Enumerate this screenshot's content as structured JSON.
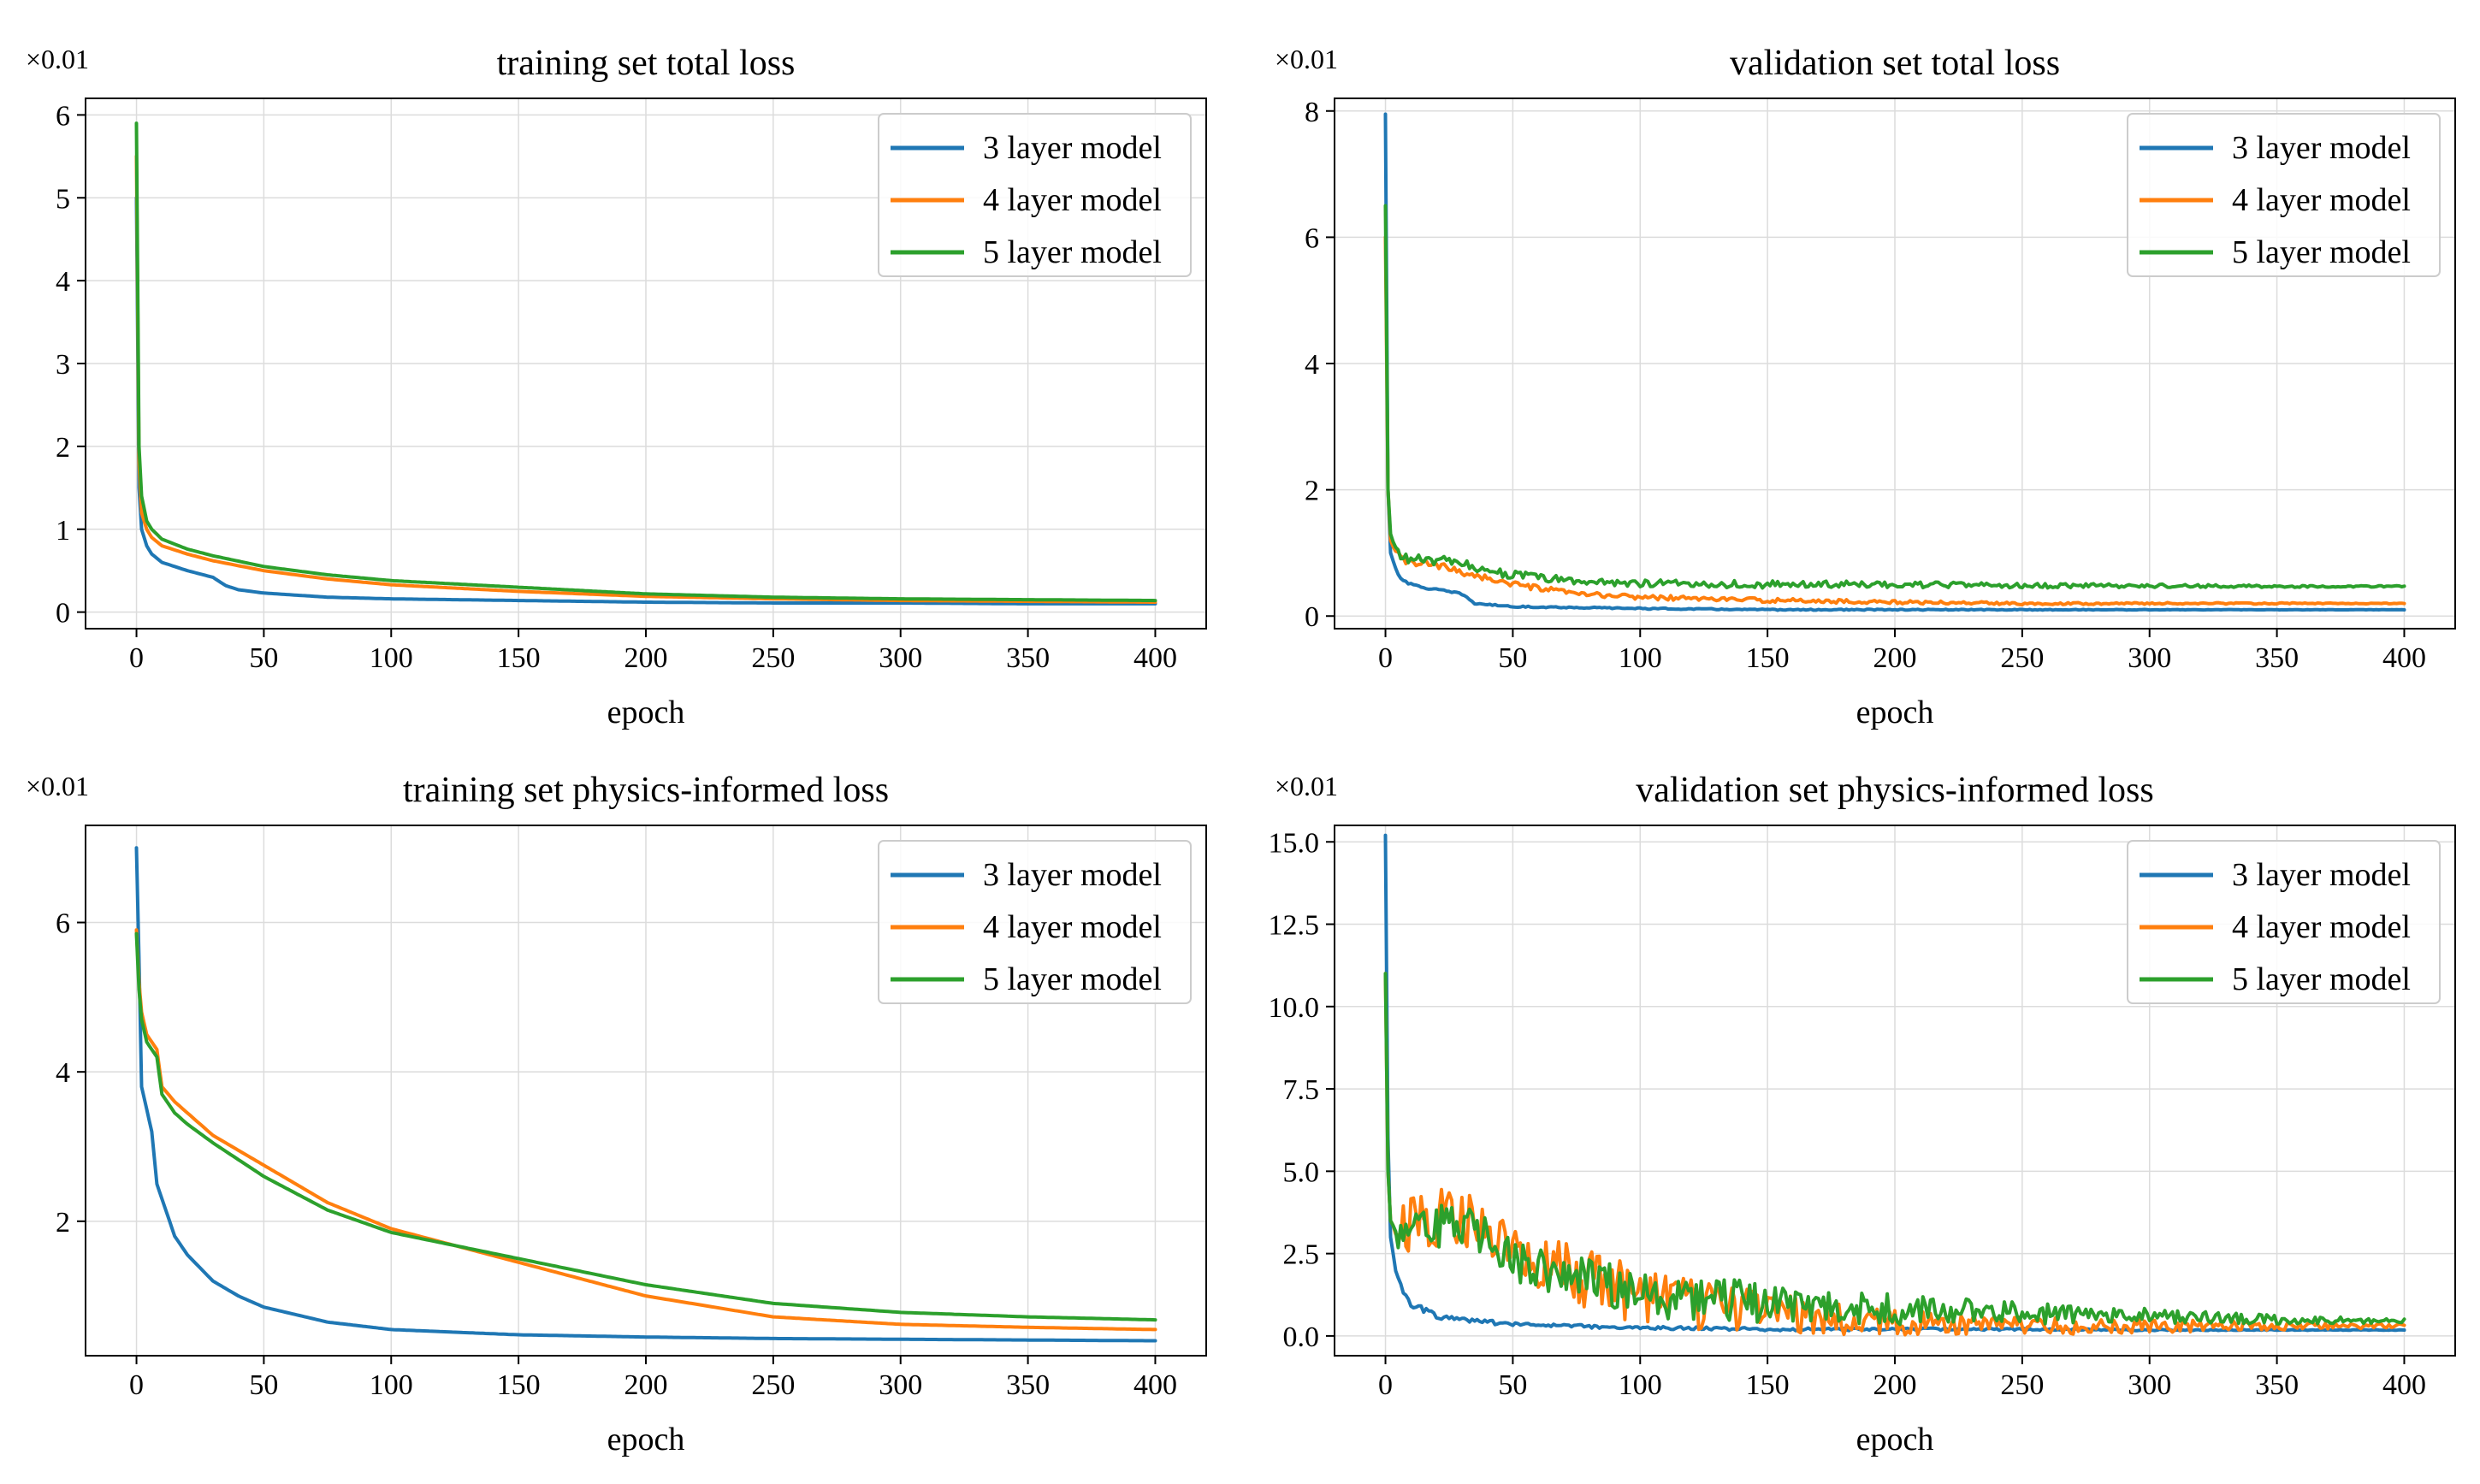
{
  "chart_data": [
    {
      "type": "line",
      "title": "training set total loss",
      "xlabel": "epoch",
      "ylabel": "",
      "offset_label": "×0.01",
      "xlim": [
        -20,
        420
      ],
      "ylim": [
        -0.2,
        6.2
      ],
      "xticks": [
        0,
        50,
        100,
        150,
        200,
        250,
        300,
        350,
        400
      ],
      "yticks": [
        0,
        1,
        2,
        3,
        4,
        5,
        6
      ],
      "grid": true,
      "legend": "top-right",
      "series": [
        {
          "name": "3 layer model",
          "color": "#1f77b4",
          "noise": 0.0,
          "x": [
            0,
            1,
            2,
            4,
            6,
            10,
            15,
            20,
            30,
            35,
            40,
            50,
            75,
            100,
            150,
            200,
            250,
            300,
            350,
            400
          ],
          "y": [
            5.0,
            1.5,
            1.0,
            0.8,
            0.7,
            0.6,
            0.55,
            0.5,
            0.42,
            0.32,
            0.27,
            0.23,
            0.18,
            0.16,
            0.14,
            0.12,
            0.11,
            0.11,
            0.1,
            0.1
          ]
        },
        {
          "name": "4 layer model",
          "color": "#ff7f0e",
          "noise": 0.0,
          "x": [
            0,
            1,
            2,
            4,
            6,
            10,
            15,
            20,
            30,
            50,
            75,
            100,
            150,
            200,
            250,
            300,
            350,
            400
          ],
          "y": [
            5.5,
            1.8,
            1.2,
            1.0,
            0.9,
            0.8,
            0.75,
            0.7,
            0.62,
            0.5,
            0.4,
            0.33,
            0.25,
            0.19,
            0.16,
            0.14,
            0.13,
            0.12
          ]
        },
        {
          "name": "5 layer model",
          "color": "#2ca02c",
          "noise": 0.0,
          "x": [
            0,
            1,
            2,
            4,
            6,
            10,
            15,
            20,
            30,
            50,
            75,
            100,
            150,
            200,
            250,
            300,
            350,
            400
          ],
          "y": [
            5.9,
            2.0,
            1.4,
            1.1,
            1.0,
            0.88,
            0.82,
            0.76,
            0.68,
            0.55,
            0.45,
            0.38,
            0.3,
            0.22,
            0.18,
            0.16,
            0.15,
            0.14
          ]
        }
      ]
    },
    {
      "type": "line",
      "title": "validation set total loss",
      "xlabel": "epoch",
      "ylabel": "",
      "offset_label": "×0.01",
      "xlim": [
        -20,
        420
      ],
      "ylim": [
        -0.2,
        8.2
      ],
      "xticks": [
        0,
        50,
        100,
        150,
        200,
        250,
        300,
        350,
        400
      ],
      "yticks": [
        0,
        2,
        4,
        6,
        8
      ],
      "grid": true,
      "legend": "top-right",
      "series": [
        {
          "name": "3 layer model",
          "color": "#1f77b4",
          "noise": 0.03,
          "x": [
            0,
            1,
            2,
            4,
            6,
            10,
            15,
            20,
            30,
            35,
            50,
            100,
            150,
            200,
            250,
            300,
            350,
            400
          ],
          "y": [
            7.95,
            2.0,
            1.0,
            0.75,
            0.6,
            0.5,
            0.45,
            0.42,
            0.35,
            0.2,
            0.15,
            0.12,
            0.1,
            0.1,
            0.1,
            0.1,
            0.1,
            0.1
          ]
        },
        {
          "name": "4 layer model",
          "color": "#ff7f0e",
          "noise": 0.08,
          "x": [
            0,
            1,
            2,
            4,
            6,
            10,
            20,
            30,
            50,
            75,
            100,
            150,
            200,
            250,
            300,
            350,
            400
          ],
          "y": [
            6.0,
            2.0,
            1.2,
            1.0,
            0.9,
            0.85,
            0.8,
            0.7,
            0.5,
            0.35,
            0.3,
            0.25,
            0.22,
            0.2,
            0.2,
            0.2,
            0.2
          ]
        },
        {
          "name": "5 layer model",
          "color": "#2ca02c",
          "noise": 0.1,
          "x": [
            0,
            1,
            2,
            4,
            6,
            10,
            20,
            30,
            50,
            75,
            100,
            150,
            200,
            250,
            300,
            350,
            400
          ],
          "y": [
            6.5,
            2.0,
            1.3,
            1.05,
            0.95,
            0.9,
            0.88,
            0.82,
            0.65,
            0.55,
            0.52,
            0.5,
            0.5,
            0.48,
            0.48,
            0.47,
            0.47
          ]
        }
      ]
    },
    {
      "type": "line",
      "title": "training set physics-informed loss",
      "xlabel": "epoch",
      "ylabel": "",
      "offset_label": "×0.01",
      "xlim": [
        -20,
        420
      ],
      "ylim": [
        0.2,
        7.3
      ],
      "xticks": [
        0,
        50,
        100,
        150,
        200,
        250,
        300,
        350,
        400
      ],
      "yticks": [
        2,
        4,
        6
      ],
      "grid": true,
      "legend": "top-right",
      "series": [
        {
          "name": "3 layer model",
          "color": "#1f77b4",
          "noise": 0.0,
          "x": [
            0,
            1,
            2,
            4,
            6,
            8,
            10,
            15,
            20,
            30,
            40,
            50,
            75,
            100,
            150,
            200,
            250,
            300,
            350,
            400
          ],
          "y": [
            7.0,
            5.5,
            3.8,
            3.5,
            3.2,
            2.5,
            2.3,
            1.8,
            1.55,
            1.2,
            1.0,
            0.85,
            0.65,
            0.55,
            0.48,
            0.45,
            0.43,
            0.42,
            0.41,
            0.4
          ]
        },
        {
          "name": "4 layer model",
          "color": "#ff7f0e",
          "noise": 0.0,
          "x": [
            0,
            1,
            2,
            4,
            6,
            8,
            10,
            15,
            20,
            30,
            50,
            75,
            100,
            150,
            200,
            250,
            300,
            350,
            400
          ],
          "y": [
            5.9,
            5.2,
            4.8,
            4.5,
            4.4,
            4.3,
            3.8,
            3.6,
            3.45,
            3.15,
            2.75,
            2.25,
            1.9,
            1.45,
            1.0,
            0.72,
            0.62,
            0.58,
            0.55
          ]
        },
        {
          "name": "5 layer model",
          "color": "#2ca02c",
          "noise": 0.0,
          "x": [
            0,
            1,
            2,
            4,
            6,
            8,
            10,
            15,
            20,
            30,
            50,
            75,
            100,
            150,
            200,
            250,
            300,
            350,
            400
          ],
          "y": [
            5.85,
            5.1,
            4.7,
            4.4,
            4.3,
            4.2,
            3.7,
            3.45,
            3.3,
            3.05,
            2.6,
            2.15,
            1.85,
            1.5,
            1.15,
            0.9,
            0.78,
            0.72,
            0.68
          ]
        }
      ]
    },
    {
      "type": "line",
      "title": "validation set physics-informed loss",
      "xlabel": "epoch",
      "ylabel": "",
      "offset_label": "×0.01",
      "xlim": [
        -20,
        420
      ],
      "ylim": [
        -0.6,
        15.5
      ],
      "xticks": [
        0,
        50,
        100,
        150,
        200,
        250,
        300,
        350,
        400
      ],
      "yticks": [
        0.0,
        2.5,
        5.0,
        7.5,
        10.0,
        12.5,
        15.0
      ],
      "ytick_labels": [
        "0.0",
        "2.5",
        "5.0",
        "7.5",
        "10.0",
        "12.5",
        "15.0"
      ],
      "grid": true,
      "legend": "top-right",
      "series": [
        {
          "name": "3 layer model",
          "color": "#1f77b4",
          "noise": 0.12,
          "x": [
            0,
            1,
            2,
            4,
            6,
            10,
            15,
            20,
            30,
            50,
            100,
            150,
            200,
            250,
            300,
            350,
            400
          ],
          "y": [
            15.2,
            6.0,
            3.0,
            2.0,
            1.5,
            1.0,
            0.8,
            0.6,
            0.5,
            0.35,
            0.25,
            0.2,
            0.2,
            0.2,
            0.18,
            0.18,
            0.18
          ]
        },
        {
          "name": "4 layer model",
          "color": "#ff7f0e",
          "noise": 0.9,
          "x": [
            0,
            1,
            2,
            4,
            6,
            10,
            20,
            30,
            40,
            50,
            60,
            75,
            100,
            125,
            150,
            200,
            250,
            300,
            350,
            400
          ],
          "y": [
            11.0,
            5.0,
            3.5,
            3.2,
            3.4,
            3.5,
            3.6,
            3.5,
            3.2,
            2.5,
            2.2,
            1.8,
            1.2,
            0.9,
            0.7,
            0.4,
            0.3,
            0.3,
            0.3,
            0.3
          ]
        },
        {
          "name": "5 layer model",
          "color": "#2ca02c",
          "noise": 0.7,
          "x": [
            0,
            1,
            2,
            4,
            6,
            10,
            20,
            30,
            40,
            50,
            60,
            75,
            100,
            125,
            150,
            200,
            250,
            300,
            350,
            400
          ],
          "y": [
            11.0,
            5.0,
            3.5,
            3.2,
            3.1,
            3.0,
            3.3,
            3.5,
            3.0,
            2.3,
            2.0,
            1.7,
            1.3,
            1.1,
            1.0,
            0.8,
            0.7,
            0.6,
            0.5,
            0.45
          ]
        }
      ]
    }
  ]
}
